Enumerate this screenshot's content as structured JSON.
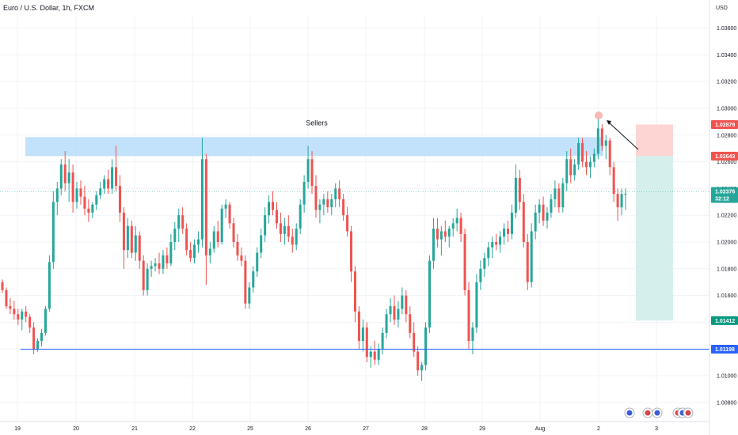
{
  "header": {
    "title": "Euro / U.S. Dollar, 1h, FXCM"
  },
  "colors": {
    "up": "#26a69a",
    "down": "#ef5350",
    "zone": "#bbdefb",
    "level": "#2962ff",
    "stop": "#fdd5d3",
    "target": "#d5f0ec",
    "grid": "#f0f3fa"
  },
  "chart_data": {
    "type": "candlestick",
    "title": "Euro / U.S. Dollar, 1h, FXCM",
    "xlabel": "",
    "ylabel": "USD",
    "ylim": [
      1.0075,
      1.0385
    ],
    "y_ticks": [
      "1.03600",
      "1.03400",
      "1.03200",
      "1.03000",
      "1.02800",
      "1.02600",
      "1.02400",
      "1.02200",
      "1.02000",
      "1.01800",
      "1.01600",
      "1.01400",
      "1.01200",
      "1.01000",
      "1.00800"
    ],
    "x_ticks": [
      "19",
      "20",
      "21",
      "22",
      "25",
      "26",
      "27",
      "28",
      "29",
      "Aug",
      "2",
      "3"
    ],
    "price_tags": [
      {
        "label": "1.02879",
        "value": 1.02879,
        "kind": "stop"
      },
      {
        "label": "1.02643",
        "value": 1.02643,
        "kind": "entry"
      },
      {
        "label": "1.02376",
        "sublabel": "32:12",
        "value": 1.02376,
        "kind": "current"
      },
      {
        "label": "1.01412",
        "value": 1.01412,
        "kind": "target"
      },
      {
        "label": "1.01198",
        "value": 1.01198,
        "kind": "level"
      }
    ],
    "annotations": [
      {
        "text": "Sellers",
        "kind": "resistance-zone",
        "y_range": [
          1.02643,
          1.02785
        ]
      },
      {
        "text": "",
        "kind": "support-line",
        "y": 1.01198
      },
      {
        "text": "",
        "kind": "short-position",
        "entry": 1.02643,
        "stop": 1.02879,
        "target": 1.01412
      }
    ],
    "series": [
      {
        "values": [
          [
            1.017,
            1.0172,
            1.0162,
            1.0164
          ],
          [
            1.0164,
            1.0166,
            1.015,
            1.0152
          ],
          [
            1.0152,
            1.0158,
            1.0146,
            1.015
          ],
          [
            1.015,
            1.0156,
            1.0142,
            1.0146
          ],
          [
            1.0146,
            1.015,
            1.0138,
            1.0142
          ],
          [
            1.0142,
            1.015,
            1.0134,
            1.0148
          ],
          [
            1.0148,
            1.0152,
            1.014,
            1.0144
          ],
          [
            1.0144,
            1.0146,
            1.0132,
            1.0136
          ],
          [
            1.0136,
            1.014,
            1.0116,
            1.012
          ],
          [
            1.012,
            1.0128,
            1.0118,
            1.0126
          ],
          [
            1.0126,
            1.0135,
            1.0122,
            1.0132
          ],
          [
            1.0132,
            1.0152,
            1.013,
            1.015
          ],
          [
            1.015,
            1.019,
            1.0148,
            1.0185
          ],
          [
            1.0185,
            1.0238,
            1.018,
            1.023
          ],
          [
            1.023,
            1.0245,
            1.022,
            1.024
          ],
          [
            1.024,
            1.0262,
            1.0235,
            1.0258
          ],
          [
            1.0258,
            1.0268,
            1.0238,
            1.0244
          ],
          [
            1.0244,
            1.0262,
            1.023,
            1.0252
          ],
          [
            1.0252,
            1.0258,
            1.0222,
            1.023
          ],
          [
            1.023,
            1.0245,
            1.0225,
            1.024
          ],
          [
            1.024,
            1.0246,
            1.0228,
            1.0234
          ],
          [
            1.0234,
            1.0242,
            1.022,
            1.0225
          ],
          [
            1.0225,
            1.0232,
            1.0215,
            1.0222
          ],
          [
            1.0222,
            1.023,
            1.0218,
            1.0228
          ],
          [
            1.0228,
            1.0238,
            1.0224,
            1.0235
          ],
          [
            1.0235,
            1.0245,
            1.0232,
            1.024
          ],
          [
            1.024,
            1.025,
            1.0236,
            1.0247
          ],
          [
            1.0247,
            1.0254,
            1.0236,
            1.024
          ],
          [
            1.024,
            1.0262,
            1.0236,
            1.0256
          ],
          [
            1.0256,
            1.0272,
            1.0238,
            1.0242
          ],
          [
            1.0242,
            1.025,
            1.0215,
            1.0222
          ],
          [
            1.0222,
            1.0226,
            1.018,
            1.0194
          ],
          [
            1.0194,
            1.0218,
            1.0188,
            1.0212
          ],
          [
            1.0212,
            1.0216,
            1.0188,
            1.0192
          ],
          [
            1.0192,
            1.0212,
            1.0186,
            1.0205
          ],
          [
            1.0205,
            1.0208,
            1.018,
            1.0186
          ],
          [
            1.0186,
            1.019,
            1.016,
            1.0164
          ],
          [
            1.0164,
            1.0184,
            1.016,
            1.018
          ],
          [
            1.018,
            1.0186,
            1.0174,
            1.0182
          ],
          [
            1.0182,
            1.0188,
            1.0178,
            1.0184
          ],
          [
            1.0184,
            1.0192,
            1.0176,
            1.018
          ],
          [
            1.018,
            1.0194,
            1.0176,
            1.019
          ],
          [
            1.019,
            1.0196,
            1.018,
            1.0184
          ],
          [
            1.0184,
            1.0206,
            1.0182,
            1.02
          ],
          [
            1.02,
            1.0215,
            1.0194,
            1.021
          ],
          [
            1.021,
            1.0225,
            1.02,
            1.022
          ],
          [
            1.022,
            1.0226,
            1.0206,
            1.021
          ],
          [
            1.021,
            1.0214,
            1.019,
            1.0194
          ],
          [
            1.0194,
            1.02,
            1.0185,
            1.0188
          ],
          [
            1.0188,
            1.0202,
            1.0184,
            1.0198
          ],
          [
            1.0198,
            1.0208,
            1.0192,
            1.0202
          ],
          [
            1.0202,
            1.0278,
            1.0196,
            1.0262
          ],
          [
            1.0262,
            1.0266,
            1.0168,
            1.019
          ],
          [
            1.019,
            1.02,
            1.0184,
            1.0195
          ],
          [
            1.0195,
            1.0212,
            1.0192,
            1.0208
          ],
          [
            1.0208,
            1.0216,
            1.0196,
            1.02
          ],
          [
            1.02,
            1.0228,
            1.0198,
            1.0225
          ],
          [
            1.0225,
            1.0232,
            1.0218,
            1.0228
          ],
          [
            1.0228,
            1.023,
            1.021,
            1.0214
          ],
          [
            1.0214,
            1.0218,
            1.0196,
            1.02
          ],
          [
            1.02,
            1.0206,
            1.0186,
            1.019
          ],
          [
            1.019,
            1.0196,
            1.0182,
            1.0186
          ],
          [
            1.0186,
            1.019,
            1.015,
            1.0154
          ],
          [
            1.0154,
            1.017,
            1.015,
            1.0166
          ],
          [
            1.0166,
            1.0182,
            1.0162,
            1.0178
          ],
          [
            1.0178,
            1.0196,
            1.0174,
            1.0192
          ],
          [
            1.0192,
            1.021,
            1.0188,
            1.0205
          ],
          [
            1.0205,
            1.0226,
            1.02,
            1.022
          ],
          [
            1.022,
            1.0235,
            1.0214,
            1.023
          ],
          [
            1.023,
            1.0238,
            1.022,
            1.0224
          ],
          [
            1.0224,
            1.023,
            1.021,
            1.0214
          ],
          [
            1.0214,
            1.0222,
            1.02,
            1.0206
          ],
          [
            1.0206,
            1.0218,
            1.0198,
            1.0212
          ],
          [
            1.0212,
            1.022,
            1.02,
            1.0204
          ],
          [
            1.0204,
            1.021,
            1.0192,
            1.0198
          ],
          [
            1.0198,
            1.0214,
            1.0194,
            1.021
          ],
          [
            1.021,
            1.0232,
            1.0206,
            1.0228
          ],
          [
            1.0228,
            1.025,
            1.0222,
            1.0245
          ],
          [
            1.0245,
            1.0272,
            1.024,
            1.0262
          ],
          [
            1.0262,
            1.0268,
            1.0236,
            1.0242
          ],
          [
            1.0242,
            1.025,
            1.0218,
            1.0224
          ],
          [
            1.0224,
            1.0232,
            1.0214,
            1.0228
          ],
          [
            1.0228,
            1.0236,
            1.022,
            1.0232
          ],
          [
            1.0232,
            1.0238,
            1.0222,
            1.0226
          ],
          [
            1.0226,
            1.0236,
            1.022,
            1.0232
          ],
          [
            1.0232,
            1.0244,
            1.0226,
            1.024
          ],
          [
            1.024,
            1.0246,
            1.0226,
            1.0232
          ],
          [
            1.0232,
            1.0236,
            1.0216,
            1.022
          ],
          [
            1.022,
            1.0226,
            1.0204,
            1.0208
          ],
          [
            1.0208,
            1.0212,
            1.017,
            1.0178
          ],
          [
            1.0178,
            1.0182,
            1.014,
            1.0148
          ],
          [
            1.0148,
            1.0152,
            1.012,
            1.0126
          ],
          [
            1.0126,
            1.0142,
            1.0118,
            1.0136
          ],
          [
            1.0136,
            1.014,
            1.011,
            1.0114
          ],
          [
            1.0114,
            1.0122,
            1.0106,
            1.0118
          ],
          [
            1.0118,
            1.0126,
            1.0108,
            1.0112
          ],
          [
            1.0112,
            1.0124,
            1.0108,
            1.012
          ],
          [
            1.012,
            1.0136,
            1.0116,
            1.0132
          ],
          [
            1.0132,
            1.015,
            1.0128,
            1.0146
          ],
          [
            1.0146,
            1.0158,
            1.014,
            1.0152
          ],
          [
            1.0152,
            1.016,
            1.0138,
            1.0142
          ],
          [
            1.0142,
            1.0156,
            1.0136,
            1.015
          ],
          [
            1.015,
            1.0166,
            1.0146,
            1.016
          ],
          [
            1.016,
            1.0164,
            1.014,
            1.0146
          ],
          [
            1.0146,
            1.0152,
            1.0128,
            1.0132
          ],
          [
            1.0132,
            1.014,
            1.0114,
            1.0118
          ],
          [
            1.0118,
            1.0122,
            1.01,
            1.0104
          ],
          [
            1.0104,
            1.011,
            1.0096,
            1.0108
          ],
          [
            1.0108,
            1.014,
            1.0104,
            1.0136
          ],
          [
            1.0136,
            1.019,
            1.0132,
            1.0186
          ],
          [
            1.0186,
            1.0218,
            1.018,
            1.021
          ],
          [
            1.021,
            1.0218,
            1.0196,
            1.0202
          ],
          [
            1.0202,
            1.0212,
            1.019,
            1.0208
          ],
          [
            1.0208,
            1.0216,
            1.02,
            1.0204
          ],
          [
            1.0204,
            1.0212,
            1.0196,
            1.021
          ],
          [
            1.021,
            1.0218,
            1.0204,
            1.0214
          ],
          [
            1.0214,
            1.0225,
            1.0208,
            1.0218
          ],
          [
            1.0218,
            1.0222,
            1.02,
            1.0206
          ],
          [
            1.0206,
            1.021,
            1.016,
            1.0164
          ],
          [
            1.0164,
            1.017,
            1.012,
            1.0126
          ],
          [
            1.0126,
            1.014,
            1.0116,
            1.0136
          ],
          [
            1.0136,
            1.0176,
            1.0132,
            1.017
          ],
          [
            1.017,
            1.0186,
            1.0164,
            1.018
          ],
          [
            1.018,
            1.0192,
            1.0174,
            1.0188
          ],
          [
            1.0188,
            1.02,
            1.0182,
            1.0196
          ],
          [
            1.0196,
            1.0204,
            1.0188,
            1.02
          ],
          [
            1.02,
            1.0206,
            1.0194,
            1.0198
          ],
          [
            1.0198,
            1.0208,
            1.0192,
            1.0204
          ],
          [
            1.0204,
            1.0214,
            1.0198,
            1.021
          ],
          [
            1.021,
            1.0216,
            1.02,
            1.0206
          ],
          [
            1.0206,
            1.0228,
            1.0202,
            1.0222
          ],
          [
            1.0222,
            1.0258,
            1.0218,
            1.0248
          ],
          [
            1.0248,
            1.0254,
            1.0224,
            1.023
          ],
          [
            1.023,
            1.0236,
            1.0196,
            1.02
          ],
          [
            1.02,
            1.0206,
            1.0164,
            1.017
          ],
          [
            1.017,
            1.0214,
            1.0166,
            1.0208
          ],
          [
            1.0208,
            1.0228,
            1.0202,
            1.0222
          ],
          [
            1.0222,
            1.0232,
            1.0214,
            1.0228
          ],
          [
            1.0228,
            1.0234,
            1.0212,
            1.0216
          ],
          [
            1.0216,
            1.0226,
            1.021,
            1.0222
          ],
          [
            1.0222,
            1.0236,
            1.0218,
            1.0232
          ],
          [
            1.0232,
            1.0246,
            1.0226,
            1.024
          ],
          [
            1.024,
            1.0244,
            1.0222,
            1.0226
          ],
          [
            1.0226,
            1.0248,
            1.0222,
            1.0244
          ],
          [
            1.0244,
            1.0268,
            1.0238,
            1.0262
          ],
          [
            1.0262,
            1.027,
            1.0244,
            1.025
          ],
          [
            1.025,
            1.0262,
            1.0246,
            1.0258
          ],
          [
            1.0258,
            1.0278,
            1.0254,
            1.0274
          ],
          [
            1.0274,
            1.0278,
            1.0256,
            1.026
          ],
          [
            1.026,
            1.0268,
            1.025,
            1.0256
          ],
          [
            1.0256,
            1.0264,
            1.0248,
            1.026
          ],
          [
            1.026,
            1.027,
            1.0256,
            1.0266
          ],
          [
            1.0266,
            1.0292,
            1.0262,
            1.0285
          ],
          [
            1.0285,
            1.0288,
            1.0268,
            1.0272
          ],
          [
            1.0272,
            1.028,
            1.0262,
            1.0276
          ],
          [
            1.0276,
            1.0278,
            1.025,
            1.0256
          ],
          [
            1.0256,
            1.026,
            1.023,
            1.0236
          ],
          [
            1.0236,
            1.024,
            1.0216,
            1.0226
          ],
          [
            1.0226,
            1.024,
            1.022,
            1.0236
          ],
          [
            1.0236,
            1.024,
            1.0224,
            1.0236
          ]
        ]
      }
    ]
  }
}
